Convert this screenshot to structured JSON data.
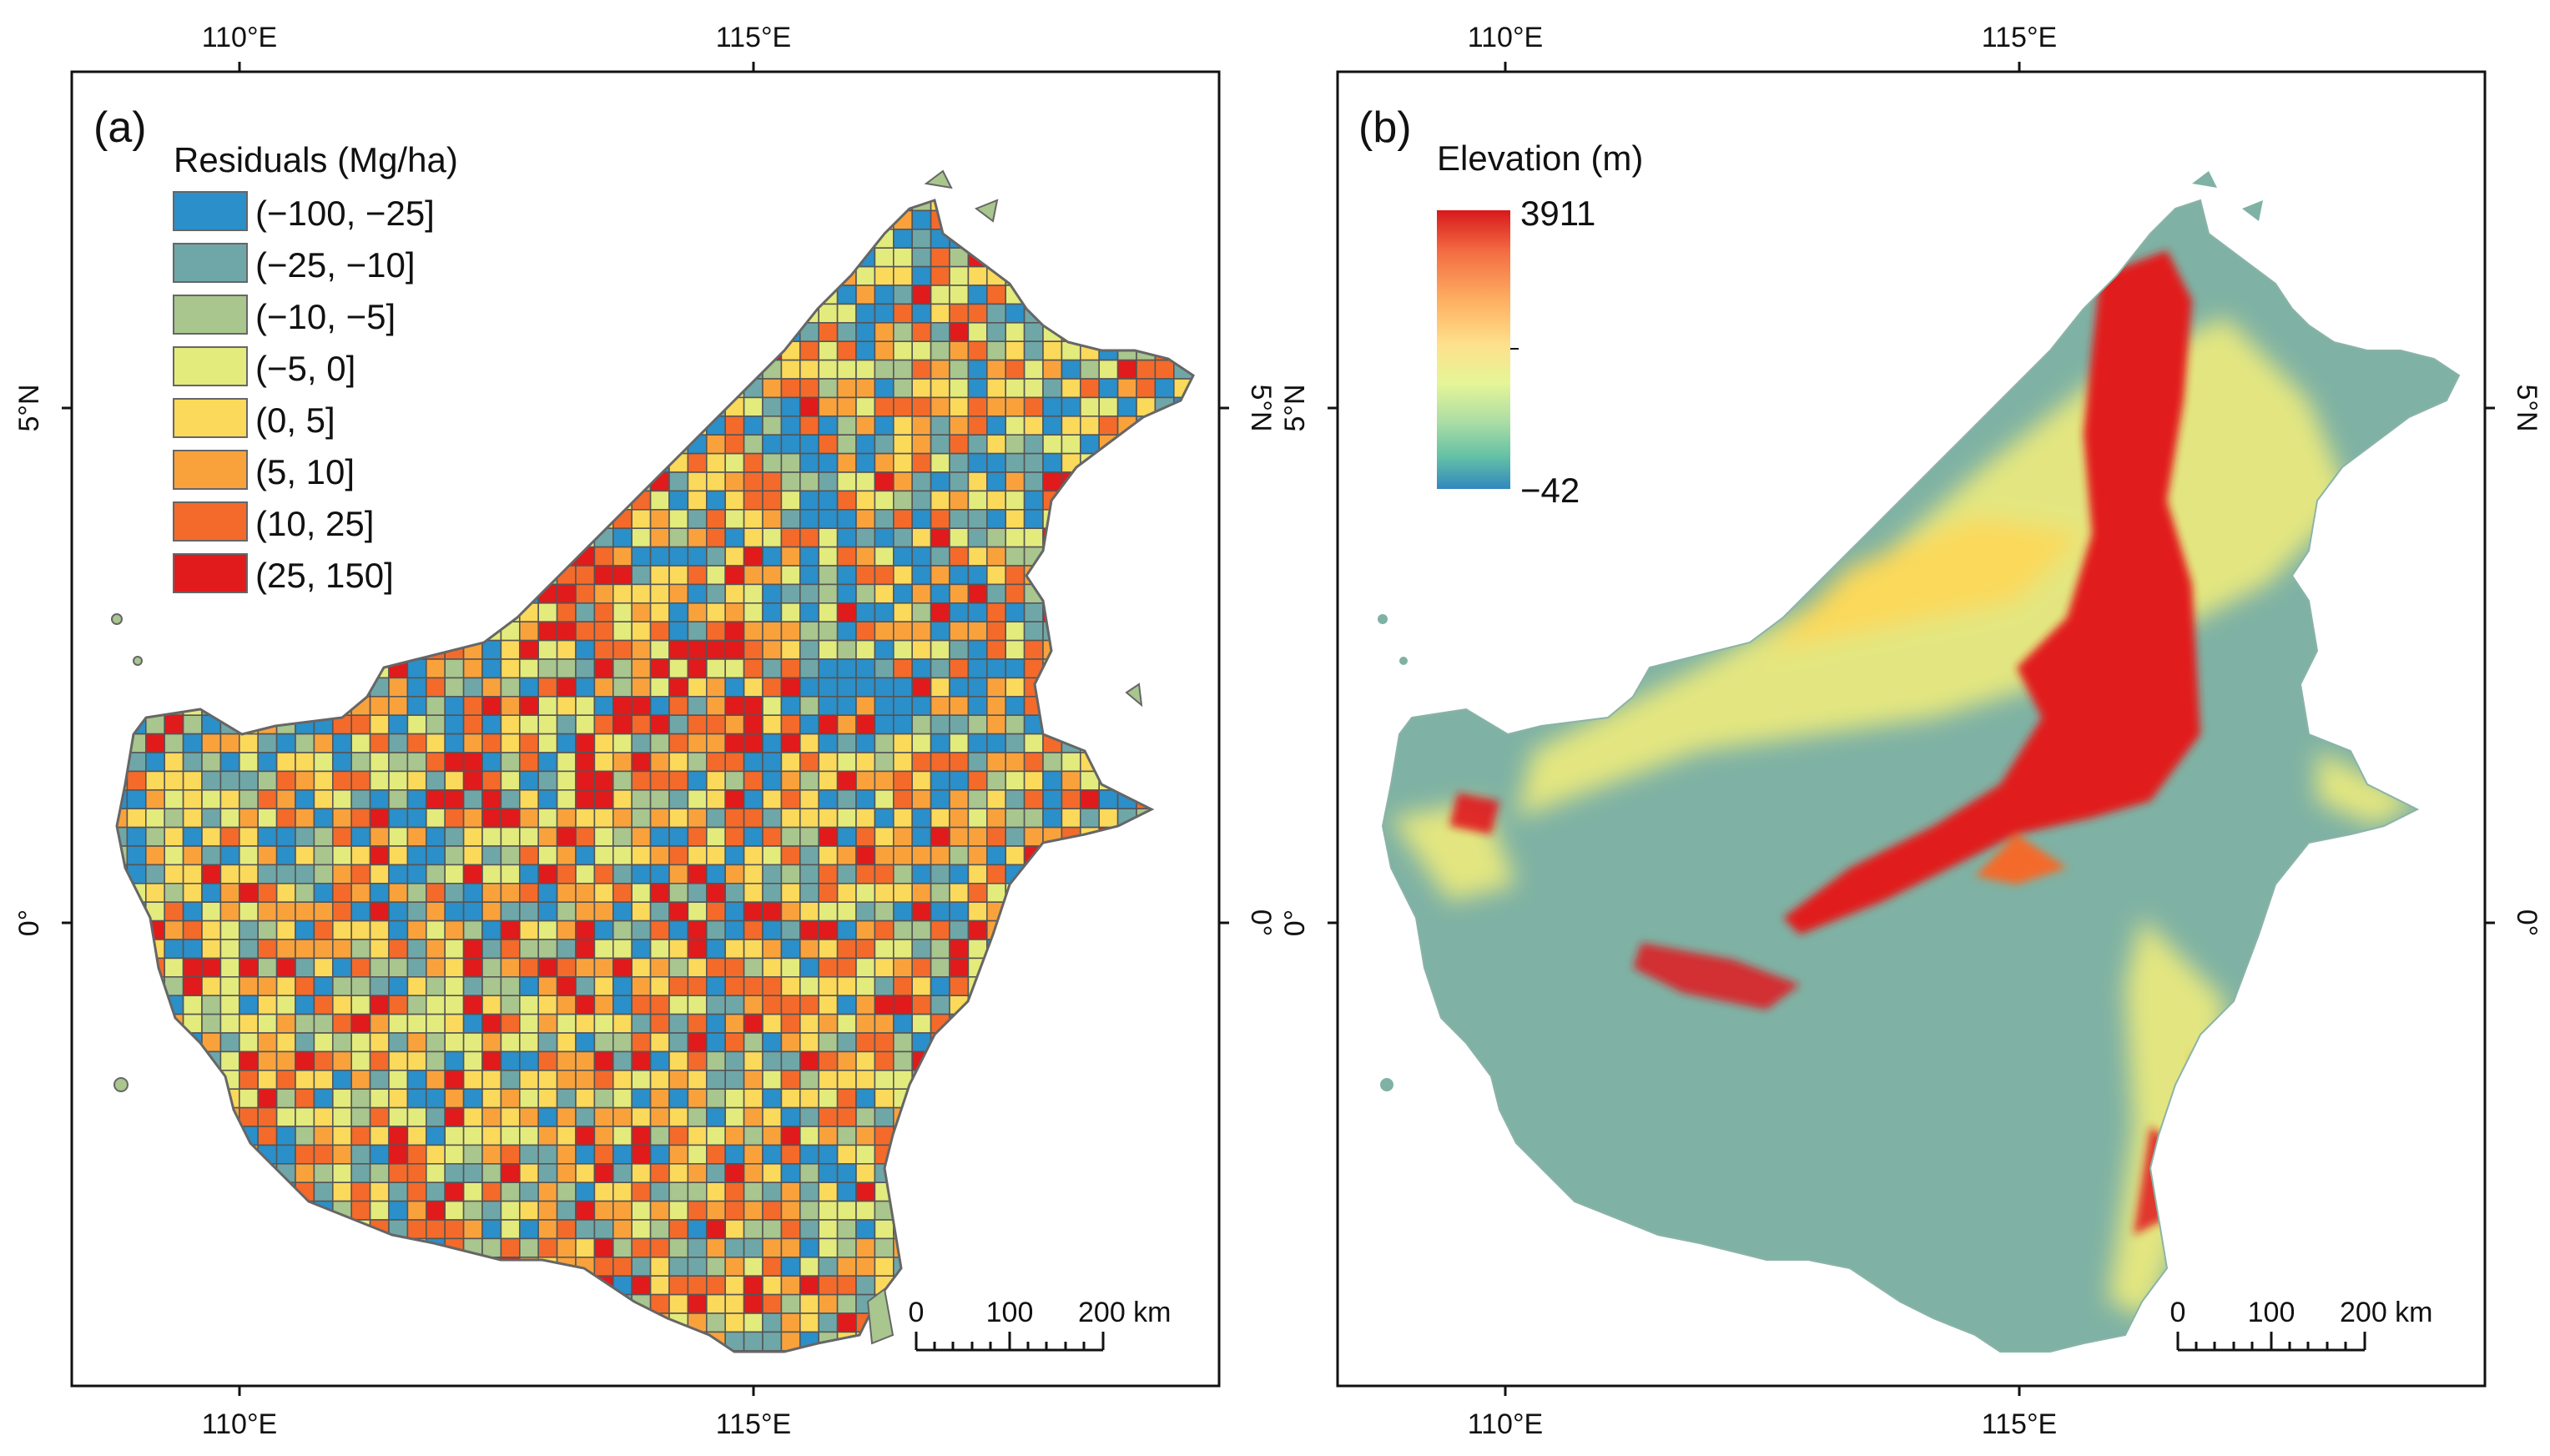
{
  "panels": [
    {
      "label": "(a)",
      "legend": {
        "title": "Residuals (Mg/ha)",
        "classes": [
          {
            "label": "(−100, −25]",
            "color": "#2b8fc9"
          },
          {
            "label": "(−25, −10]",
            "color": "#6fa7a8"
          },
          {
            "label": "(−10, −5]",
            "color": "#a8c68e"
          },
          {
            "label": "(−5, 0]",
            "color": "#e3eb7c"
          },
          {
            "label": "(0, 5]",
            "color": "#fbd95a"
          },
          {
            "label": "(5, 10]",
            "color": "#f9a23c"
          },
          {
            "label": "(10, 25]",
            "color": "#f46a2a"
          },
          {
            "label": "(25, 150]",
            "color": "#e11a1c"
          }
        ]
      },
      "axes": {
        "top": [
          "110°E",
          "115°E"
        ],
        "bottom": [
          "110°E",
          "115°E"
        ],
        "left": [
          "5°N",
          "0°"
        ],
        "right": [
          "5°N",
          "0°"
        ]
      },
      "scalebar": {
        "labels": [
          "0",
          "100",
          "200 km"
        ]
      }
    },
    {
      "label": "(b)",
      "legend": {
        "title": "Elevation (m)",
        "max": "3911",
        "min": "−42",
        "gradient": [
          "#d7191c",
          "#f46d43",
          "#fdae61",
          "#fee08b",
          "#e6f598",
          "#abdda4",
          "#66c2a5",
          "#3288bd"
        ]
      },
      "axes": {
        "top": [
          "110°E",
          "115°E"
        ],
        "bottom": [
          "110°E",
          "115°E"
        ],
        "left": [
          "5°N",
          "0°"
        ],
        "right": [
          "5°N",
          "0°"
        ]
      },
      "scalebar": {
        "labels": [
          "0",
          "100",
          "200 km"
        ]
      }
    }
  ],
  "colors": {
    "lowland": "#7fb2a4",
    "hill": "#e3e680",
    "mountain": "#e11a1c",
    "grid_stroke": "#555555"
  }
}
